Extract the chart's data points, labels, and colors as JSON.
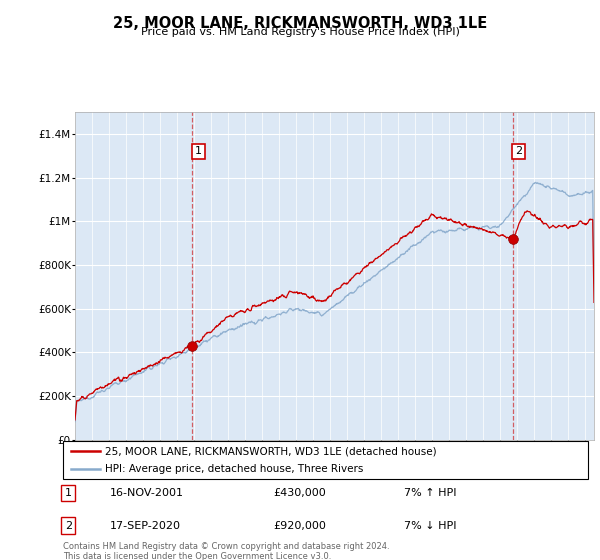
{
  "title": "25, MOOR LANE, RICKMANSWORTH, WD3 1LE",
  "subtitle": "Price paid vs. HM Land Registry's House Price Index (HPI)",
  "legend_line1": "25, MOOR LANE, RICKMANSWORTH, WD3 1LE (detached house)",
  "legend_line2": "HPI: Average price, detached house, Three Rivers",
  "sale1_date": "16-NOV-2001",
  "sale1_price": "£430,000",
  "sale1_hpi": "7% ↑ HPI",
  "sale2_date": "17-SEP-2020",
  "sale2_price": "£920,000",
  "sale2_hpi": "7% ↓ HPI",
  "footer": "Contains HM Land Registry data © Crown copyright and database right 2024.\nThis data is licensed under the Open Government Licence v3.0.",
  "red_color": "#cc0000",
  "blue_color": "#88aacc",
  "bg_color": "#dce8f5",
  "ylim_min": 0,
  "ylim_max": 1500000,
  "yticks": [
    0,
    200000,
    400000,
    600000,
    800000,
    1000000,
    1200000,
    1400000
  ],
  "ytick_labels": [
    "£0",
    "£200K",
    "£400K",
    "£600K",
    "£800K",
    "£1M",
    "£1.2M",
    "£1.4M"
  ],
  "sale1_x": 2001.9,
  "sale1_y": 430000,
  "sale2_x": 2020.72,
  "sale2_y": 920000,
  "xmin": 1995,
  "xmax": 2025.5
}
